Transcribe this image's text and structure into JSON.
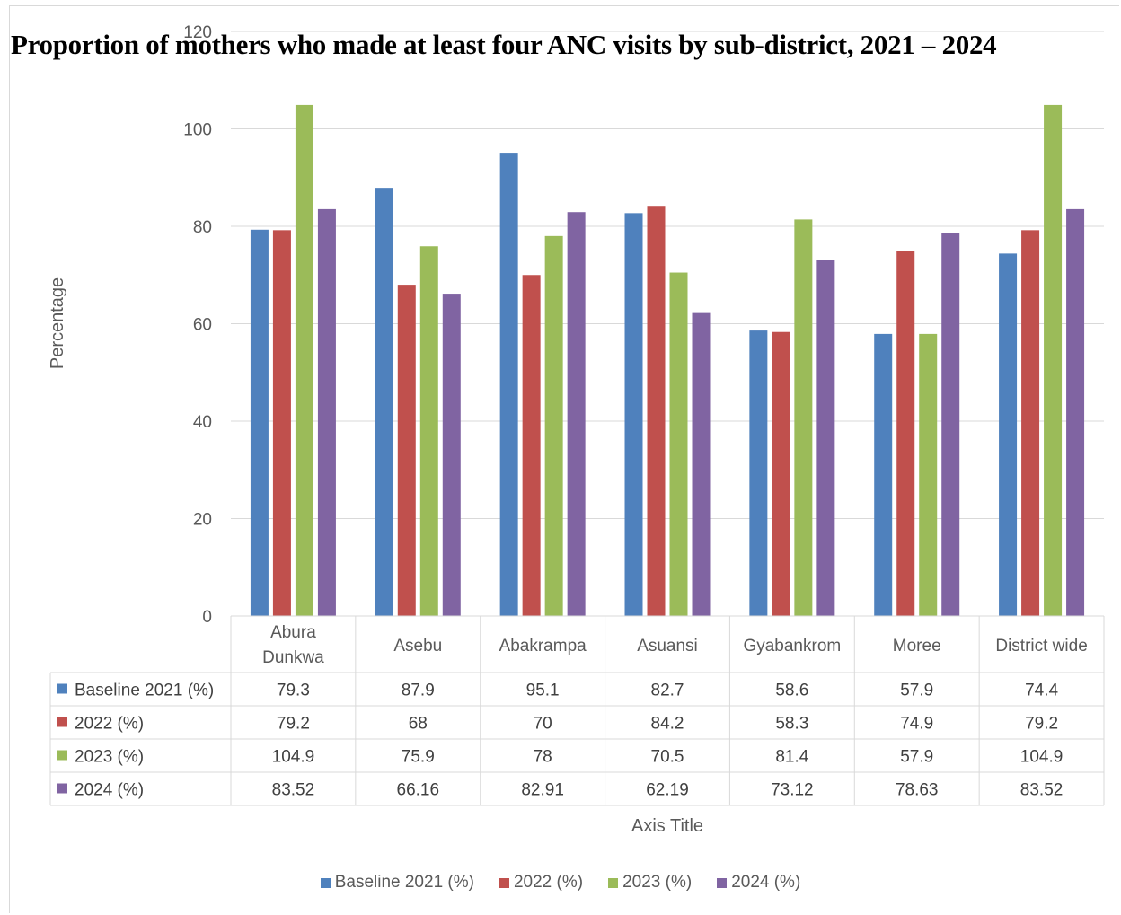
{
  "chart_data": {
    "type": "bar",
    "title": "Proportion of mothers who made at least four ANC visits by sub-district, 2021 – 2024",
    "ylabel": "Percentage",
    "xlabel": "Axis Title",
    "ylim": [
      0,
      120
    ],
    "yticks": [
      0,
      20,
      40,
      60,
      80,
      100,
      120
    ],
    "grid": true,
    "legend_position": "bottom",
    "categories": [
      [
        "Abura",
        "Dunkwa"
      ],
      [
        "Asebu"
      ],
      [
        "Abakrampa"
      ],
      [
        "Asuansi"
      ],
      [
        "Gyabankrom"
      ],
      [
        "Moree"
      ],
      [
        "District wide"
      ]
    ],
    "series": [
      {
        "name": "Baseline 2021 (%)",
        "color": "#4f81bd",
        "values": [
          79.3,
          87.9,
          95.1,
          82.7,
          58.6,
          57.9,
          74.4
        ],
        "labels": [
          "79.3",
          "87.9",
          "95.1",
          "82.7",
          "58.6",
          "57.9",
          "74.4"
        ]
      },
      {
        "name": "2022 (%)",
        "color": "#c0504d",
        "values": [
          79.2,
          68,
          70,
          84.2,
          58.3,
          74.9,
          79.2
        ],
        "labels": [
          "79.2",
          "68",
          "70",
          "84.2",
          "58.3",
          "74.9",
          "79.2"
        ]
      },
      {
        "name": "2023 (%)",
        "color": "#9bbb59",
        "values": [
          104.9,
          75.9,
          78,
          70.5,
          81.4,
          57.9,
          104.9
        ],
        "labels": [
          "104.9",
          "75.9",
          "78",
          "70.5",
          "81.4",
          "57.9",
          "104.9"
        ]
      },
      {
        "name": "2024 (%)",
        "color": "#8064a2",
        "values": [
          83.52,
          66.16,
          82.91,
          62.19,
          73.12,
          78.63,
          83.52
        ],
        "labels": [
          "83.52",
          "66.16",
          "82.91",
          "62.19",
          "73.12",
          "78.63",
          "83.52"
        ]
      }
    ]
  }
}
